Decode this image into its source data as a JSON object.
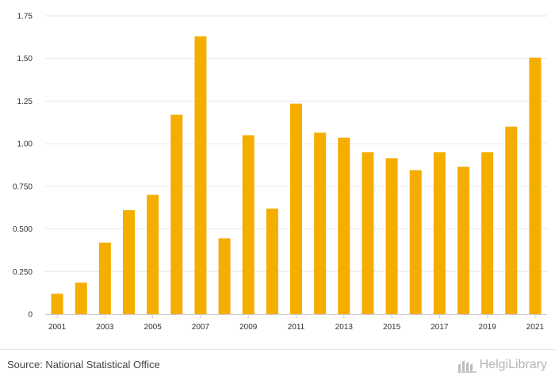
{
  "chart_data": {
    "type": "bar",
    "title": "",
    "xlabel": "",
    "ylabel": "",
    "categories": [
      "2001",
      "2002",
      "2003",
      "2004",
      "2005",
      "2006",
      "2007",
      "2008",
      "2009",
      "2010",
      "2011",
      "2012",
      "2013",
      "2014",
      "2015",
      "2016",
      "2017",
      "2018",
      "2019",
      "2020",
      "2021"
    ],
    "values": [
      0.12,
      0.185,
      0.42,
      0.61,
      0.7,
      1.17,
      1.63,
      0.445,
      1.05,
      0.62,
      1.235,
      1.065,
      1.035,
      0.95,
      0.915,
      0.845,
      0.95,
      0.865,
      0.95,
      1.1,
      1.505
    ],
    "ylim": [
      0,
      1.75
    ],
    "yticks": [
      0,
      0.25,
      0.5,
      0.75,
      1.0,
      1.25,
      1.5,
      1.75
    ],
    "ytick_labels": [
      "0",
      "0.250",
      "0.500",
      "0.750",
      "1.00",
      "1.25",
      "1.50",
      "1.75"
    ],
    "xtick_labels": [
      "2001",
      "2003",
      "2005",
      "2007",
      "2009",
      "2011",
      "2013",
      "2015",
      "2017",
      "2019",
      "2021"
    ],
    "bar_color": "#f5ad00",
    "grid": true
  },
  "footer": {
    "source": "Source: National Statistical Office",
    "brand": "HelgiLibrary",
    "brand_icon": "helgi-library-logo-icon"
  }
}
